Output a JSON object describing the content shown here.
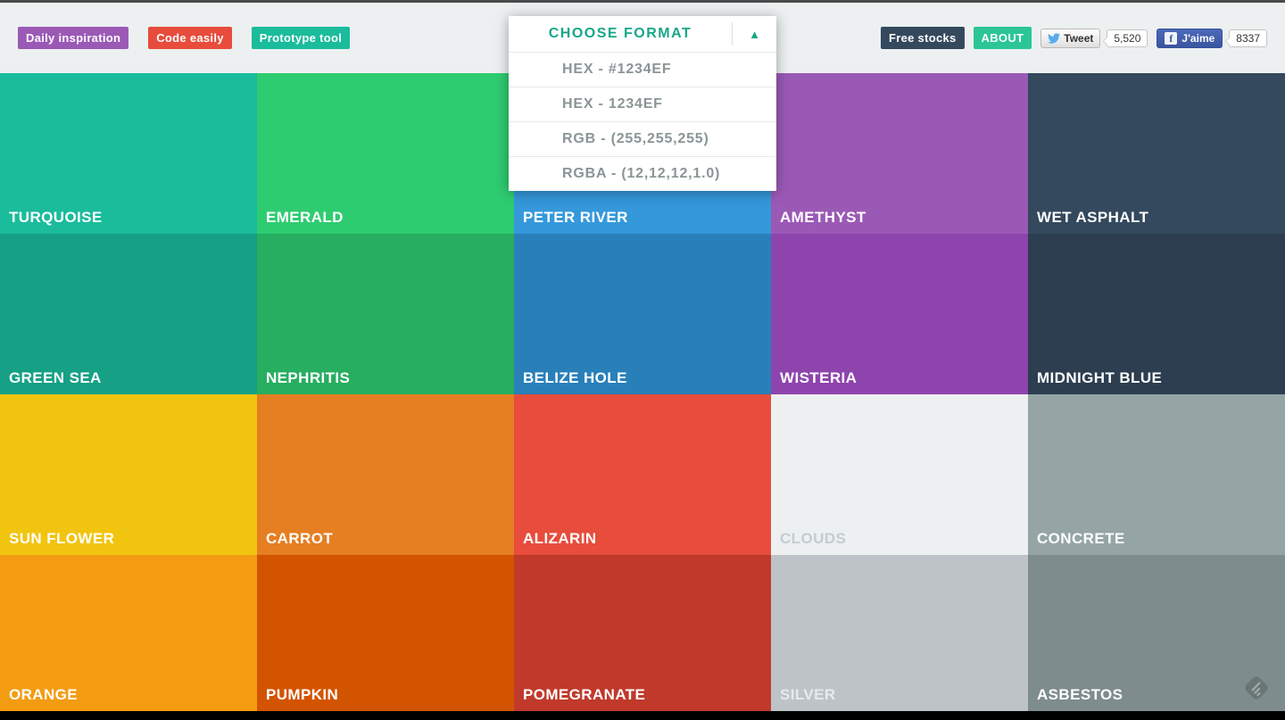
{
  "header": {
    "badges": [
      {
        "label": "Daily inspiration",
        "color": "#9b59b6"
      },
      {
        "label": "Code easily",
        "color": "#e74c3c"
      },
      {
        "label": "Prototype tool",
        "color": "#1abc9c"
      }
    ],
    "free_stocks_label": "Free stocks",
    "about_label": "ABOUT",
    "tweet": {
      "label": "Tweet",
      "count": "5,520"
    },
    "facebook": {
      "label": "J'aime",
      "count": "8337"
    }
  },
  "dropdown": {
    "title": "CHOOSE FORMAT",
    "arrow": "▲",
    "items": [
      "HEX - #1234EF",
      "HEX - 1234EF",
      "RGB - (255,255,255)",
      "RGBA - (12,12,12,1.0)"
    ],
    "accent_color": "#17a689"
  },
  "palette": {
    "cells": [
      {
        "name": "TURQUOISE",
        "color": "#1abc9c",
        "label_color": "#ffffff"
      },
      {
        "name": "EMERALD",
        "color": "#2ecc71",
        "label_color": "#ffffff"
      },
      {
        "name": "PETER RIVER",
        "color": "#3498db",
        "label_color": "#ffffff"
      },
      {
        "name": "AMETHYST",
        "color": "#9b59b6",
        "label_color": "#ffffff"
      },
      {
        "name": "WET ASPHALT",
        "color": "#34495e",
        "label_color": "#ffffff"
      },
      {
        "name": "GREEN SEA",
        "color": "#16a085",
        "label_color": "#ffffff"
      },
      {
        "name": "NEPHRITIS",
        "color": "#27ae60",
        "label_color": "#ffffff"
      },
      {
        "name": "BELIZE HOLE",
        "color": "#2980b9",
        "label_color": "#ffffff"
      },
      {
        "name": "WISTERIA",
        "color": "#8e44ad",
        "label_color": "#ffffff"
      },
      {
        "name": "MIDNIGHT BLUE",
        "color": "#2c3e50",
        "label_color": "#ffffff"
      },
      {
        "name": "SUN FLOWER",
        "color": "#f1c40f",
        "label_color": "#ffffff"
      },
      {
        "name": "CARROT",
        "color": "#e67e22",
        "label_color": "#ffffff"
      },
      {
        "name": "ALIZARIN",
        "color": "#e74c3c",
        "label_color": "#ffffff"
      },
      {
        "name": "CLOUDS",
        "color": "#ecf0f1",
        "label_color": "#c3ccd1"
      },
      {
        "name": "CONCRETE",
        "color": "#95a5a6",
        "label_color": "#ffffff"
      },
      {
        "name": "ORANGE",
        "color": "#f39c12",
        "label_color": "#ffffff"
      },
      {
        "name": "PUMPKIN",
        "color": "#d35400",
        "label_color": "#ffffff"
      },
      {
        "name": "POMEGRANATE",
        "color": "#c0392b",
        "label_color": "#ffffff"
      },
      {
        "name": "SILVER",
        "color": "#bdc3c7",
        "label_color": "#e6ebec"
      },
      {
        "name": "ASBESTOS",
        "color": "#7f8c8d",
        "label_color": "#ffffff"
      }
    ]
  },
  "icons": {
    "twitter_bird": "twitter-bird-icon",
    "facebook_f": "facebook-f-icon",
    "dropdown_arrow": "triangle-up-icon",
    "corner": "feedly-diamond-icon"
  }
}
